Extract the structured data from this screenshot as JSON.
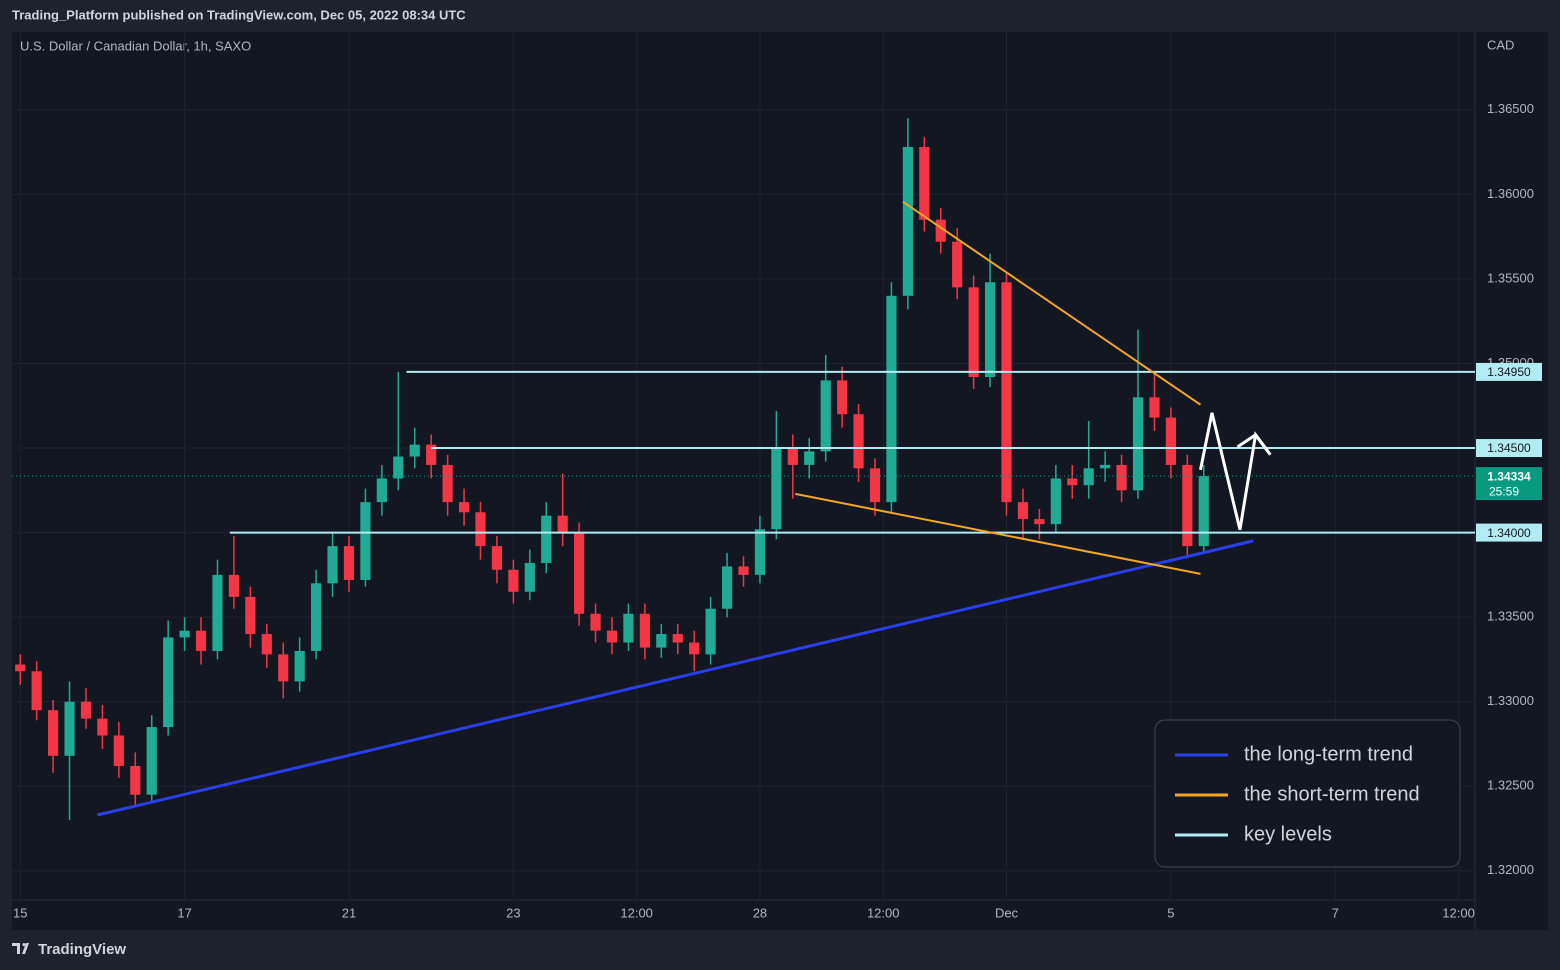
{
  "chart_data": {
    "type": "candlestick",
    "header": "Trading_Platform published on TradingView.com, Dec 05, 2022 08:34 UTC",
    "title": "U.S. Dollar / Canadian Dollar, 1h, SAXO",
    "currency": "CAD",
    "brand": "TradingView",
    "up_color": "#22ab94",
    "down_color": "#f23645",
    "grid": true,
    "legend": "bottom-right",
    "xlim": [
      -0.1,
      17.7
    ],
    "xticks": [
      {
        "value": 0,
        "label": "15"
      },
      {
        "value": 2,
        "label": "17"
      },
      {
        "value": 4,
        "label": "21"
      },
      {
        "value": 6,
        "label": "23"
      },
      {
        "value": 7.5,
        "label": "12:00"
      },
      {
        "value": 9,
        "label": "28"
      },
      {
        "value": 10.5,
        "label": "12:00"
      },
      {
        "value": 12,
        "label": "Dec"
      },
      {
        "value": 14,
        "label": "5"
      },
      {
        "value": 16,
        "label": "7"
      },
      {
        "value": 17.5,
        "label": "12:00"
      }
    ],
    "ylim": [
      1.3165,
      1.3696
    ],
    "yticks": [
      {
        "value": 1.32,
        "label": "1.32000"
      },
      {
        "value": 1.325,
        "label": "1.32500"
      },
      {
        "value": 1.33,
        "label": "1.33000"
      },
      {
        "value": 1.335,
        "label": "1.33500"
      },
      {
        "value": 1.34,
        "label": "1.34000"
      },
      {
        "value": 1.345,
        "label": "1.34500"
      },
      {
        "value": 1.35,
        "label": "1.35000"
      },
      {
        "value": 1.355,
        "label": "1.35500"
      },
      {
        "value": 1.36,
        "label": "1.36000"
      },
      {
        "value": 1.365,
        "label": "1.36500"
      }
    ],
    "x": [
      0,
      0.2,
      0.4,
      0.6,
      0.8,
      1.0,
      1.2,
      1.4,
      1.6,
      1.8,
      2.0,
      2.2,
      2.4,
      2.6,
      2.8,
      3.0,
      3.2,
      3.4,
      3.6,
      3.8,
      4.0,
      4.2,
      4.4,
      4.6,
      4.8,
      5.0,
      5.2,
      5.4,
      5.6,
      5.8,
      6.0,
      6.2,
      6.4,
      6.6,
      6.8,
      7.0,
      7.2,
      7.4,
      7.6,
      7.8,
      8.0,
      8.2,
      8.4,
      8.6,
      8.8,
      9.0,
      9.2,
      9.4,
      9.6,
      9.8,
      10.0,
      10.2,
      10.4,
      10.6,
      10.8,
      11.0,
      11.2,
      11.4,
      11.6,
      11.8,
      12.0,
      12.2,
      12.4,
      12.6,
      12.8,
      13.0,
      13.2,
      13.4,
      13.6,
      13.8,
      14.0,
      14.2,
      14.4
    ],
    "open": [
      1.3322,
      1.3318,
      1.3295,
      1.3268,
      1.33,
      1.329,
      1.328,
      1.3262,
      1.3245,
      1.3285,
      1.3338,
      1.3342,
      1.333,
      1.3375,
      1.3362,
      1.334,
      1.3328,
      1.3312,
      1.333,
      1.337,
      1.3392,
      1.3372,
      1.3418,
      1.3432,
      1.3445,
      1.3452,
      1.344,
      1.3418,
      1.3412,
      1.3392,
      1.3378,
      1.3365,
      1.3382,
      1.341,
      1.34,
      1.3352,
      1.3342,
      1.3335,
      1.3352,
      1.3332,
      1.334,
      1.3335,
      1.3328,
      1.3355,
      1.338,
      1.3375,
      1.3402,
      1.345,
      1.344,
      1.3448,
      1.349,
      1.347,
      1.3438,
      1.3418,
      1.354,
      1.3628,
      1.3585,
      1.3572,
      1.3545,
      1.3492,
      1.3548,
      1.3418,
      1.3408,
      1.3405,
      1.3432,
      1.3428,
      1.3438,
      1.344,
      1.3425,
      1.348,
      1.3468,
      1.344,
      1.3392
    ],
    "high": [
      1.3328,
      1.3324,
      1.3301,
      1.3312,
      1.3308,
      1.3298,
      1.3288,
      1.327,
      1.3292,
      1.3348,
      1.335,
      1.335,
      1.3384,
      1.3398,
      1.3368,
      1.3346,
      1.3335,
      1.3338,
      1.3378,
      1.34,
      1.3398,
      1.3426,
      1.344,
      1.3495,
      1.3462,
      1.3458,
      1.3446,
      1.3426,
      1.3418,
      1.3398,
      1.3384,
      1.339,
      1.3418,
      1.3435,
      1.3406,
      1.3358,
      1.335,
      1.3358,
      1.3358,
      1.3346,
      1.3346,
      1.3342,
      1.3362,
      1.3388,
      1.3386,
      1.341,
      1.3472,
      1.3458,
      1.3456,
      1.3505,
      1.3498,
      1.3476,
      1.3444,
      1.3548,
      1.3645,
      1.3634,
      1.3592,
      1.358,
      1.3552,
      1.3565,
      1.3554,
      1.3426,
      1.3414,
      1.344,
      1.344,
      1.3466,
      1.3448,
      1.3446,
      1.352,
      1.3495,
      1.3474,
      1.3446,
      1.344
    ],
    "low": [
      1.331,
      1.3289,
      1.3258,
      1.323,
      1.3284,
      1.3272,
      1.3255,
      1.3238,
      1.324,
      1.328,
      1.333,
      1.3322,
      1.3325,
      1.3355,
      1.3332,
      1.332,
      1.3302,
      1.3306,
      1.3325,
      1.3362,
      1.3365,
      1.3368,
      1.341,
      1.3425,
      1.3438,
      1.3432,
      1.341,
      1.3404,
      1.3384,
      1.337,
      1.3358,
      1.336,
      1.3376,
      1.3392,
      1.3345,
      1.3335,
      1.3328,
      1.333,
      1.3325,
      1.3326,
      1.3328,
      1.3318,
      1.3322,
      1.335,
      1.3368,
      1.337,
      1.3396,
      1.342,
      1.3432,
      1.3442,
      1.3462,
      1.343,
      1.341,
      1.3412,
      1.3532,
      1.3578,
      1.3565,
      1.3538,
      1.3485,
      1.3486,
      1.341,
      1.3396,
      1.3396,
      1.34,
      1.342,
      1.342,
      1.343,
      1.3418,
      1.342,
      1.346,
      1.3432,
      1.3385,
      1.3388
    ],
    "close": [
      1.3318,
      1.3295,
      1.3268,
      1.33,
      1.329,
      1.328,
      1.3262,
      1.3245,
      1.3285,
      1.3338,
      1.3342,
      1.333,
      1.3375,
      1.3362,
      1.334,
      1.3328,
      1.3312,
      1.333,
      1.337,
      1.3392,
      1.3372,
      1.3418,
      1.3432,
      1.3445,
      1.3452,
      1.344,
      1.3418,
      1.3412,
      1.3392,
      1.3378,
      1.3365,
      1.3382,
      1.341,
      1.34,
      1.3352,
      1.3342,
      1.3335,
      1.3352,
      1.3332,
      1.334,
      1.3335,
      1.3328,
      1.3355,
      1.338,
      1.3375,
      1.3402,
      1.345,
      1.344,
      1.3448,
      1.349,
      1.347,
      1.3438,
      1.3418,
      1.354,
      1.3628,
      1.3585,
      1.3572,
      1.3545,
      1.3492,
      1.3548,
      1.3418,
      1.3408,
      1.3405,
      1.3432,
      1.3428,
      1.3438,
      1.344,
      1.3425,
      1.348,
      1.3468,
      1.344,
      1.3392,
      1.34334
    ],
    "last_price": {
      "value": 1.34334,
      "countdown": "25:59",
      "color": "#089981"
    },
    "key_levels": {
      "name": "key levels",
      "color": "#b2ebf2",
      "values": [
        1.3495,
        1.345,
        1.34
      ],
      "value_labels": [
        "1.34950",
        "1.34500",
        "1.34000"
      ],
      "x_start": [
        4.7,
        5.0,
        2.55
      ]
    },
    "trendlines": [
      {
        "name": "the long-term trend",
        "color": "#2a3ff0",
        "segments": [
          {
            "x": [
              0.94,
              15.0
            ],
            "y": [
              1.3233,
              1.33951
            ]
          }
        ]
      },
      {
        "name": "the short-term trend",
        "color": "#f5a623",
        "segments": [
          {
            "x": [
              10.74,
              14.36
            ],
            "y": [
              1.35956,
              1.34756
            ]
          },
          {
            "x": [
              9.43,
              14.36
            ],
            "y": [
              1.34229,
              1.33756
            ]
          }
        ]
      }
    ],
    "projection": {
      "color": "#ffffff",
      "x": [
        14.36,
        14.5,
        14.84,
        15.03,
        15.21
      ],
      "y": [
        1.34371,
        1.34708,
        1.34017,
        1.34578,
        1.3446
      ]
    }
  }
}
